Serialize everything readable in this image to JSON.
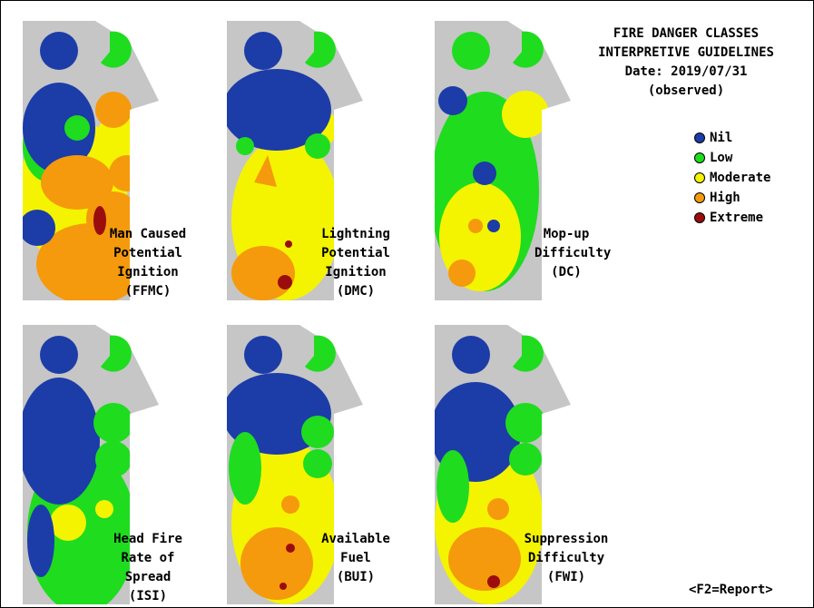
{
  "header": {
    "title_line1": "FIRE DANGER CLASSES",
    "title_line2": "INTERPRETIVE GUIDELINES",
    "date_line": "Date: 2019/07/31",
    "status_line": "(observed)"
  },
  "legend": {
    "items": [
      {
        "label": "Nil",
        "color": "#1c3ca8"
      },
      {
        "label": "Low",
        "color": "#1fdc1f"
      },
      {
        "label": "Moderate",
        "color": "#f4f400"
      },
      {
        "label": "High",
        "color": "#f59a0c"
      },
      {
        "label": "Extreme",
        "color": "#9b0d0d"
      }
    ]
  },
  "colors": {
    "land": "#c6c6c6",
    "nil": "#1c3ca8",
    "low": "#1fdc1f",
    "moderate": "#f4f400",
    "high": "#f59a0c",
    "extreme": "#9b0d0d"
  },
  "maps": [
    {
      "label_lines": [
        "Man Caused",
        "Potential",
        "Ignition",
        "(FFMC)"
      ]
    },
    {
      "label_lines": [
        "Lightning",
        "Potential",
        "Ignition",
        "(DMC)"
      ]
    },
    {
      "label_lines": [
        "Mop-up",
        "Difficulty",
        "(DC)"
      ]
    },
    {
      "label_lines": [
        "Head Fire",
        "Rate of",
        "Spread",
        "(ISI)"
      ]
    },
    {
      "label_lines": [
        "Available",
        "Fuel",
        "(BUI)"
      ]
    },
    {
      "label_lines": [
        "Suppression",
        "Difficulty",
        "(FWI)"
      ]
    }
  ],
  "footer": {
    "report_hint": "<F2=Report>"
  }
}
